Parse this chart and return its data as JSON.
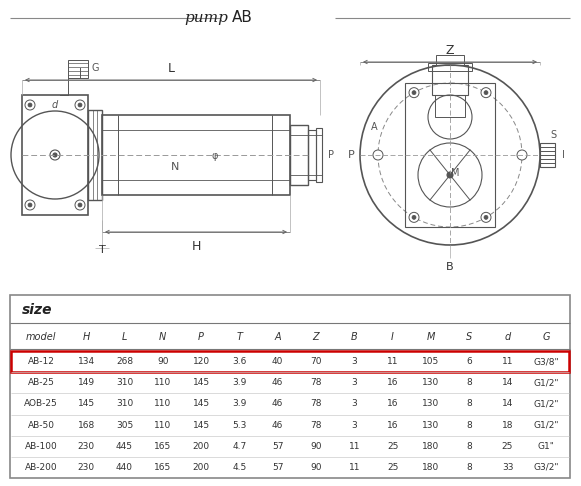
{
  "title_italic": "pump",
  "title_normal": "AB",
  "bg_color": "#f5f5f5",
  "table_header": [
    "model",
    "H",
    "L",
    "N",
    "P",
    "T",
    "A",
    "Z",
    "B",
    "I",
    "M",
    "S",
    "d",
    "G"
  ],
  "table_rows": [
    [
      "AB-12",
      "134",
      "268",
      "90",
      "120",
      "3.6",
      "40",
      "70",
      "3",
      "11",
      "105",
      "6",
      "11",
      "G3/8\""
    ],
    [
      "AB-25",
      "149",
      "310",
      "110",
      "145",
      "3.9",
      "46",
      "78",
      "3",
      "16",
      "130",
      "8",
      "14",
      "G1/2\""
    ],
    [
      "AOB-25",
      "145",
      "310",
      "110",
      "145",
      "3.9",
      "46",
      "78",
      "3",
      "16",
      "130",
      "8",
      "14",
      "G1/2\""
    ],
    [
      "AB-50",
      "168",
      "305",
      "110",
      "145",
      "5.3",
      "46",
      "78",
      "3",
      "16",
      "130",
      "8",
      "18",
      "G1/2\""
    ],
    [
      "AB-100",
      "230",
      "445",
      "165",
      "200",
      "4.7",
      "57",
      "90",
      "11",
      "25",
      "180",
      "8",
      "25",
      "G1\""
    ],
    [
      "AB-200",
      "230",
      "440",
      "165",
      "200",
      "4.5",
      "57",
      "90",
      "11",
      "25",
      "180",
      "8",
      "33",
      "G3/2\""
    ]
  ],
  "highlight_row": 0,
  "size_label": "size"
}
